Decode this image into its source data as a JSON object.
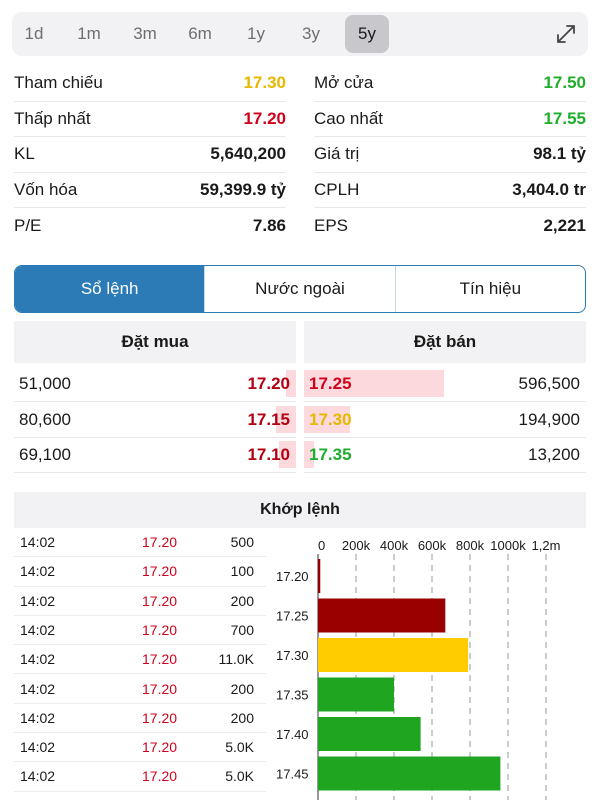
{
  "periods": {
    "items": [
      "1d",
      "1m",
      "3m",
      "6m",
      "1y",
      "3y",
      "5y"
    ],
    "active": "5y"
  },
  "stats": {
    "left": [
      {
        "label": "Tham chiếu",
        "value": "17.30",
        "color": "yellow"
      },
      {
        "label": "Thấp nhất",
        "value": "17.20",
        "color": "red"
      },
      {
        "label": "KL",
        "value": "5,640,200",
        "color": "dark"
      },
      {
        "label": "Vốn hóa",
        "value": "59,399.9 tỷ",
        "color": "dark"
      },
      {
        "label": "P/E",
        "value": "7.86",
        "color": "dark"
      }
    ],
    "right": [
      {
        "label": "Mở cửa",
        "value": "17.50",
        "color": "green"
      },
      {
        "label": "Cao nhất",
        "value": "17.55",
        "color": "green"
      },
      {
        "label": "Giá trị",
        "value": "98.1 tỷ",
        "color": "dark"
      },
      {
        "label": "CPLH",
        "value": "3,404.0 tr",
        "color": "dark"
      },
      {
        "label": "EPS",
        "value": "2,221",
        "color": "dark"
      }
    ]
  },
  "tabs": [
    "Sổ lệnh",
    "Nước ngoài",
    "Tín hiệu"
  ],
  "orderbook": {
    "buy_title": "Đặt mua",
    "sell_title": "Đặt bán",
    "rows": [
      {
        "buy_vol": "51,000",
        "buy_price": "17.20",
        "sell_price": "17.25",
        "sell_vol": "596,500",
        "sell_color": "red",
        "buy_fill": 0.0,
        "sell_fill": 1.0
      },
      {
        "buy_vol": "80,600",
        "buy_price": "17.15",
        "sell_price": "17.30",
        "sell_vol": "194,900",
        "sell_color": "yellow",
        "buy_fill": 0.14,
        "sell_fill": 0.33
      },
      {
        "buy_vol": "69,100",
        "buy_price": "17.10",
        "sell_price": "17.35",
        "sell_vol": "13,200",
        "sell_color": "green",
        "buy_fill": 0.12,
        "sell_fill": 0.0
      }
    ]
  },
  "match": {
    "title": "Khớp lệnh",
    "trades": [
      {
        "time": "14:02",
        "price": "17.20",
        "vol": "500"
      },
      {
        "time": "14:02",
        "price": "17.20",
        "vol": "100"
      },
      {
        "time": "14:02",
        "price": "17.20",
        "vol": "200"
      },
      {
        "time": "14:02",
        "price": "17.20",
        "vol": "700"
      },
      {
        "time": "14:02",
        "price": "17.20",
        "vol": "11.0K"
      },
      {
        "time": "14:02",
        "price": "17.20",
        "vol": "200"
      },
      {
        "time": "14:02",
        "price": "17.20",
        "vol": "200"
      },
      {
        "time": "14:02",
        "price": "17.20",
        "vol": "5.0K"
      },
      {
        "time": "14:02",
        "price": "17.20",
        "vol": "5.0K"
      }
    ]
  },
  "colors": {
    "yellow": "#e6b800",
    "red": "#d0021b",
    "green": "#1fae2c",
    "dark": "#1a1a1a",
    "accent": "#2c7bb6"
  },
  "chart_data": {
    "type": "bar",
    "orientation": "horizontal",
    "categories": [
      "17.20",
      "17.25",
      "17.30",
      "17.35",
      "17.40",
      "17.45"
    ],
    "values": [
      12000,
      670000,
      790000,
      400000,
      540000,
      960000
    ],
    "bar_colors": [
      "#990000",
      "#990000",
      "#ffcc00",
      "#1fa51f",
      "#1fa51f",
      "#1fa51f"
    ],
    "xticks": [
      "0",
      "200k",
      "400k",
      "600k",
      "800k",
      "1000k",
      "1,2m"
    ],
    "xlim": [
      0,
      1200000
    ],
    "grid": "vertical-dashed"
  }
}
